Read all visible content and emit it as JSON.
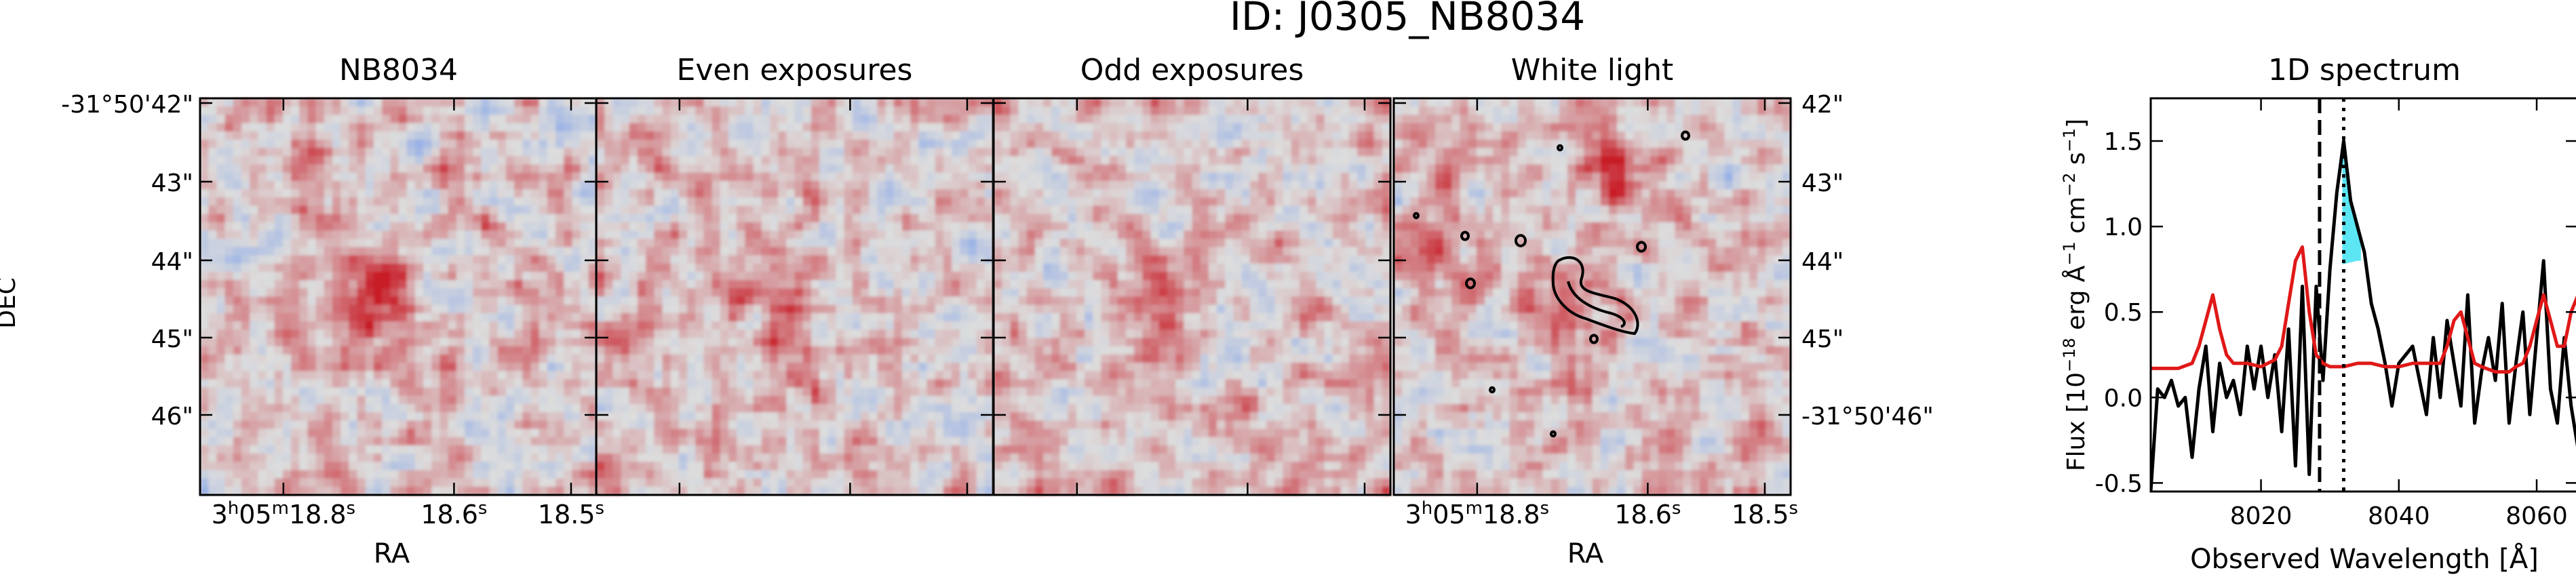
{
  "figure": {
    "title": "ID: J0305_NB8034"
  },
  "panels": [
    {
      "title": "NB8034",
      "seed": 3,
      "blob": 0.85
    },
    {
      "title": "Even exposures",
      "seed": 11,
      "blob": 0.55
    },
    {
      "title": "Odd exposures",
      "seed": 23,
      "blob": 0.55
    },
    {
      "title": "White light",
      "seed": 41,
      "blob": 0.45
    }
  ],
  "image_axes": {
    "ylabel": "DEC",
    "xlabel": "RA",
    "left_dec_ticks": [
      "-31°50'42\"",
      "43\"",
      "44\"",
      "45\"",
      "46\""
    ],
    "right_dec_ticks": [
      "42\"",
      "43\"",
      "44\"",
      "45\"",
      "-31°50'46\""
    ],
    "ra_ticks": [
      {
        "h": "3",
        "m": "05",
        "s": "18.8"
      },
      {
        "h": "",
        "m": "",
        "s": "18.6"
      },
      {
        "h": "",
        "m": "",
        "s": "18.5"
      }
    ],
    "colormap": "coolwarm (blue–grey–red)"
  },
  "chart_data": {
    "type": "line",
    "title": "1D spectrum",
    "xlabel": "Observed Wavelength [Å]",
    "ylabel": "Flux [10^-18 erg Å^-1 cm^-2 s^-1]",
    "xlim": [
      8004,
      8066
    ],
    "ylim": [
      -0.55,
      1.75
    ],
    "xticks": [
      8020,
      8040,
      8060
    ],
    "yticks": [
      -0.5,
      0.0,
      0.5,
      1.0,
      1.5
    ],
    "vlines": [
      {
        "x": 8028.5,
        "style": "dashed"
      },
      {
        "x": 8032.0,
        "style": "dotted"
      }
    ],
    "shaded_region": {
      "x": [
        8031.8,
        8034.5
      ],
      "color": "#40e0f0"
    },
    "series": [
      {
        "color": "#000000",
        "x": [
          8004,
          8005,
          8006,
          8007,
          8008,
          8009,
          8010,
          8011,
          8012,
          8013,
          8014,
          8015,
          8016,
          8017,
          8018,
          8019,
          8020,
          8021,
          8022,
          8023,
          8024,
          8025,
          8026,
          8027,
          8028,
          8029,
          8030,
          8031,
          8032,
          8033,
          8034,
          8035,
          8036,
          8037,
          8038,
          8039,
          8040,
          8041,
          8042,
          8043,
          8044,
          8045,
          8046,
          8047,
          8048,
          8049,
          8050,
          8051,
          8052,
          8053,
          8054,
          8055,
          8056,
          8057,
          8058,
          8059,
          8060,
          8061,
          8062,
          8063,
          8064,
          8065,
          8066
        ],
        "values": [
          -0.55,
          0.05,
          0.0,
          0.1,
          -0.05,
          0.0,
          -0.35,
          0.05,
          0.3,
          -0.2,
          0.2,
          0.0,
          0.1,
          -0.1,
          0.3,
          0.05,
          0.3,
          0.0,
          0.25,
          -0.2,
          0.4,
          -0.4,
          0.65,
          -0.45,
          0.65,
          0.1,
          0.75,
          1.2,
          1.5,
          1.15,
          1.0,
          0.85,
          0.55,
          0.4,
          0.2,
          -0.05,
          0.2,
          0.25,
          0.3,
          0.1,
          -0.1,
          0.35,
          0.0,
          0.45,
          0.2,
          -0.05,
          0.6,
          -0.15,
          0.15,
          0.35,
          0.1,
          0.55,
          -0.15,
          0.2,
          0.5,
          -0.1,
          0.35,
          0.8,
          0.05,
          -0.15,
          0.35,
          -0.05,
          -0.3
        ]
      },
      {
        "color": "#e01818",
        "x": [
          8004,
          8006,
          8008,
          8010,
          8011,
          8012,
          8013,
          8014,
          8015,
          8016,
          8018,
          8020,
          8022,
          8023,
          8024,
          8025,
          8026,
          8027,
          8028,
          8029,
          8030,
          8032,
          8034,
          8036,
          8038,
          8040,
          8042,
          8044,
          8046,
          8047,
          8048,
          8049,
          8050,
          8051,
          8052,
          8054,
          8056,
          8057,
          8058,
          8059,
          8060,
          8061,
          8062,
          8063,
          8064,
          8065,
          8066
        ],
        "values": [
          0.17,
          0.17,
          0.17,
          0.2,
          0.3,
          0.45,
          0.6,
          0.4,
          0.25,
          0.2,
          0.2,
          0.18,
          0.22,
          0.3,
          0.55,
          0.8,
          0.88,
          0.5,
          0.25,
          0.2,
          0.18,
          0.18,
          0.2,
          0.2,
          0.18,
          0.18,
          0.2,
          0.2,
          0.2,
          0.3,
          0.45,
          0.5,
          0.35,
          0.2,
          0.18,
          0.15,
          0.15,
          0.18,
          0.2,
          0.3,
          0.45,
          0.6,
          0.45,
          0.3,
          0.3,
          0.5,
          0.6
        ]
      }
    ]
  }
}
